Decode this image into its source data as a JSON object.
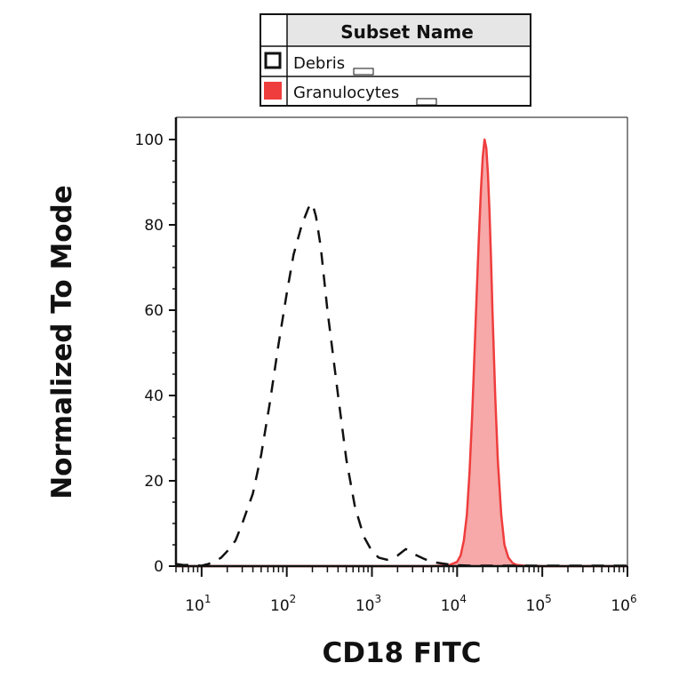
{
  "chart_data": {
    "type": "area",
    "xlabel": "CD18 FITC",
    "ylabel": "Normalized To Mode",
    "x_scale": "log",
    "xlim": [
      5,
      1000000
    ],
    "ylim": [
      0,
      100
    ],
    "y_ticks": [
      0,
      20,
      40,
      60,
      80,
      100
    ],
    "y_tick_labels": [
      "0",
      "20",
      "40",
      "60",
      "80",
      "100"
    ],
    "x_ticks": [
      10,
      100,
      1000,
      10000,
      100000,
      1000000
    ],
    "x_tick_labels": [
      {
        "base": "10",
        "exp": "1"
      },
      {
        "base": "10",
        "exp": "2"
      },
      {
        "base": "10",
        "exp": "3"
      },
      {
        "base": "10",
        "exp": "4"
      },
      {
        "base": "10",
        "exp": "5"
      },
      {
        "base": "10",
        "exp": "6"
      }
    ],
    "legend": {
      "header": "Subset Name",
      "placement": "top-center"
    },
    "series": [
      {
        "name": "Debris",
        "style": "dashed",
        "color": "#111111",
        "fill": "none",
        "x": [
          5,
          6,
          8,
          10,
          12,
          14,
          17,
          20,
          25,
          30,
          40,
          50,
          63,
          80,
          100,
          120,
          150,
          180,
          200,
          220,
          250,
          300,
          400,
          500,
          630,
          800,
          1000,
          1200,
          1500,
          2000,
          2500,
          3000,
          4000,
          5000,
          6300,
          8000,
          10000,
          15000,
          30000,
          100000,
          300000,
          1000000
        ],
        "y": [
          0.5,
          0.3,
          0.2,
          0.1,
          0.5,
          1.0,
          2.0,
          3.5,
          6.0,
          10.0,
          17.0,
          26.0,
          38.0,
          52.0,
          64.0,
          73.0,
          80.0,
          84.0,
          85.0,
          82.0,
          75.0,
          60.0,
          40.0,
          25.0,
          14.0,
          7.0,
          3.5,
          2.0,
          1.5,
          2.5,
          4.0,
          3.0,
          1.8,
          1.0,
          0.7,
          0.4,
          0.2,
          0.1,
          0.1,
          0.1,
          0.1,
          0.1
        ]
      },
      {
        "name": "Granulocytes",
        "style": "filled",
        "color": "#ef3d3d",
        "fill": "#f7a8a8",
        "x": [
          5,
          1000,
          5000,
          8000,
          10000,
          11000,
          12000,
          13000,
          14000,
          15000,
          16000,
          17000,
          18000,
          19000,
          20000,
          21000,
          22000,
          23000,
          24000,
          25000,
          26000,
          28000,
          30000,
          33000,
          36000,
          40000,
          45000,
          50000,
          60000,
          100000,
          1000000
        ],
        "y": [
          0,
          0,
          0,
          0.2,
          1.0,
          2.5,
          6.0,
          12.0,
          22.0,
          35.0,
          50.0,
          64.0,
          77.0,
          88.0,
          96.0,
          100.0,
          98.0,
          92.0,
          83.0,
          72.0,
          60.0,
          40.0,
          25.0,
          12.0,
          5.0,
          2.0,
          0.7,
          0.3,
          0.1,
          0,
          0
        ]
      }
    ]
  }
}
